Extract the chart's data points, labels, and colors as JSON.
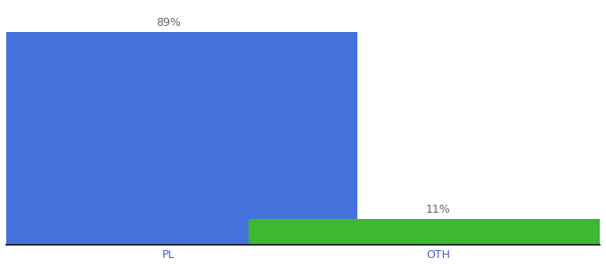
{
  "categories": [
    "PL",
    "OTH"
  ],
  "values": [
    89,
    11
  ],
  "bar_colors": [
    "#4472db",
    "#3cb832"
  ],
  "labels": [
    "89%",
    "11%"
  ],
  "background_color": "#ffffff",
  "ylim": [
    0,
    100
  ],
  "bar_width": 0.7,
  "label_fontsize": 9,
  "tick_fontsize": 9,
  "x_positions": [
    0.25,
    0.75
  ]
}
